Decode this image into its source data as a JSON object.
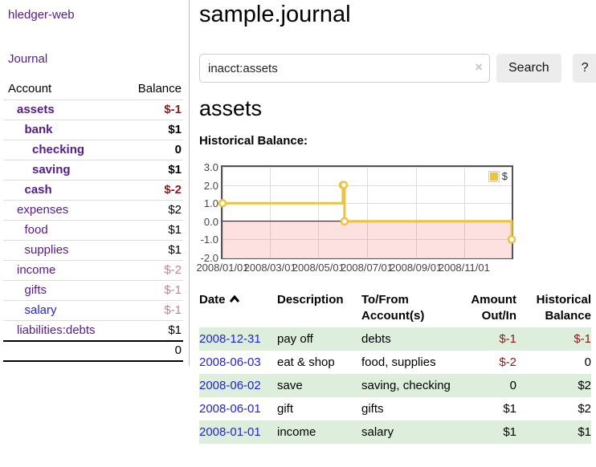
{
  "sidebar": {
    "brand": "hledger-web",
    "journal_link": "Journal",
    "accounts_table": {
      "account_header": "Account",
      "balance_header": "Balance",
      "rows": [
        {
          "name": "assets",
          "indent": 1,
          "bold": true,
          "balance": "$-1",
          "balance_style": "neg-strong"
        },
        {
          "name": "bank",
          "indent": 2,
          "bold": true,
          "balance": "$1",
          "balance_style": "pos-strong"
        },
        {
          "name": "checking",
          "indent": 3,
          "bold": true,
          "balance": "0",
          "balance_style": "pos-strong"
        },
        {
          "name": "saving",
          "indent": 3,
          "bold": true,
          "balance": "$1",
          "balance_style": "pos-strong"
        },
        {
          "name": "cash",
          "indent": 2,
          "bold": true,
          "balance": "$-2",
          "balance_style": "neg-strong"
        },
        {
          "name": "expenses",
          "indent": 1,
          "bold": false,
          "balance": "$2",
          "balance_style": "pos"
        },
        {
          "name": "food",
          "indent": 2,
          "bold": false,
          "balance": "$1",
          "balance_style": "pos"
        },
        {
          "name": "supplies",
          "indent": 2,
          "bold": false,
          "balance": "$1",
          "balance_style": "pos"
        },
        {
          "name": "income",
          "indent": 1,
          "bold": false,
          "balance": "$-2",
          "balance_style": "neg-light"
        },
        {
          "name": "gifts",
          "indent": 2,
          "bold": false,
          "balance": "$-1",
          "balance_style": "neg-light"
        },
        {
          "name": "salary",
          "indent": 2,
          "bold": false,
          "balance": "$-1",
          "balance_style": "neg-light",
          "link_color": "blue"
        },
        {
          "name": "liabilities:debts",
          "indent": 1,
          "bold": false,
          "balance": "$1",
          "balance_style": "pos"
        }
      ],
      "total": "0"
    }
  },
  "header": {
    "title": "sample.journal"
  },
  "search": {
    "value": "inacct:assets",
    "clear_icon": "×",
    "button": "Search",
    "help_button": "?"
  },
  "account_page": {
    "heading": "assets",
    "chart_label": "Historical Balance:"
  },
  "chart_data": {
    "type": "line",
    "step": true,
    "title": "Historical Balance",
    "xlabel": "",
    "ylabel": "",
    "grid": true,
    "legend_position": "top-right",
    "series": [
      {
        "name": "$",
        "color": "#edc240",
        "points": [
          [
            "2008-01-01",
            1
          ],
          [
            "2008-06-01",
            2
          ],
          [
            "2008-06-02",
            2
          ],
          [
            "2008-06-03",
            0
          ],
          [
            "2008-12-31",
            -1
          ]
        ]
      }
    ],
    "xlim": [
      "2008-01-01",
      "2008-12-31"
    ],
    "ylim": [
      -2,
      3
    ],
    "yticks": [
      "3.0",
      "2.0",
      "1.0",
      "0.0",
      "-1.0",
      "-2.0"
    ],
    "xticks": [
      "2008/01/01",
      "2008/03/01",
      "2008/05/01",
      "2008/07/01",
      "2008/09/01",
      "2008/11/01"
    ],
    "zero_line_color": "#8b0000",
    "below_zero_fill": "pink"
  },
  "register_table": {
    "headers": {
      "date": "Date",
      "sort_icon": "chevron-up",
      "description": "Description",
      "tofrom_line1": "To/From",
      "tofrom_line2": "Account(s)",
      "amount_line1": "Amount",
      "amount_line2": "Out/In",
      "balance_line1": "Historical",
      "balance_line2": "Balance"
    },
    "rows": [
      {
        "date": "2008-12-31",
        "description": "pay off",
        "accounts": "debts",
        "amount": "$-1",
        "amount_neg": true,
        "balance": "$-1",
        "balance_neg": true
      },
      {
        "date": "2008-06-03",
        "description": "eat & shop",
        "accounts": "food, supplies",
        "amount": "$-2",
        "amount_neg": true,
        "balance": "0",
        "balance_neg": false
      },
      {
        "date": "2008-06-02",
        "description": "save",
        "accounts": "saving, checking",
        "amount": "0",
        "amount_neg": false,
        "balance": "$2",
        "balance_neg": false
      },
      {
        "date": "2008-06-01",
        "description": "gift",
        "accounts": "gifts",
        "amount": "$1",
        "amount_neg": false,
        "balance": "$2",
        "balance_neg": false
      },
      {
        "date": "2008-01-01",
        "description": "income",
        "accounts": "salary",
        "amount": "$1",
        "amount_neg": false,
        "balance": "$1",
        "balance_neg": false
      }
    ]
  },
  "colors": {
    "link_purple": "#551a8b",
    "link_blue": "#2222dd",
    "negative_strong": "#8b1a1a",
    "negative_light": "#b98888",
    "row_stripe_green": "#ddeedd",
    "series_gold": "#edc240",
    "zero_line_red": "#8b0000"
  }
}
